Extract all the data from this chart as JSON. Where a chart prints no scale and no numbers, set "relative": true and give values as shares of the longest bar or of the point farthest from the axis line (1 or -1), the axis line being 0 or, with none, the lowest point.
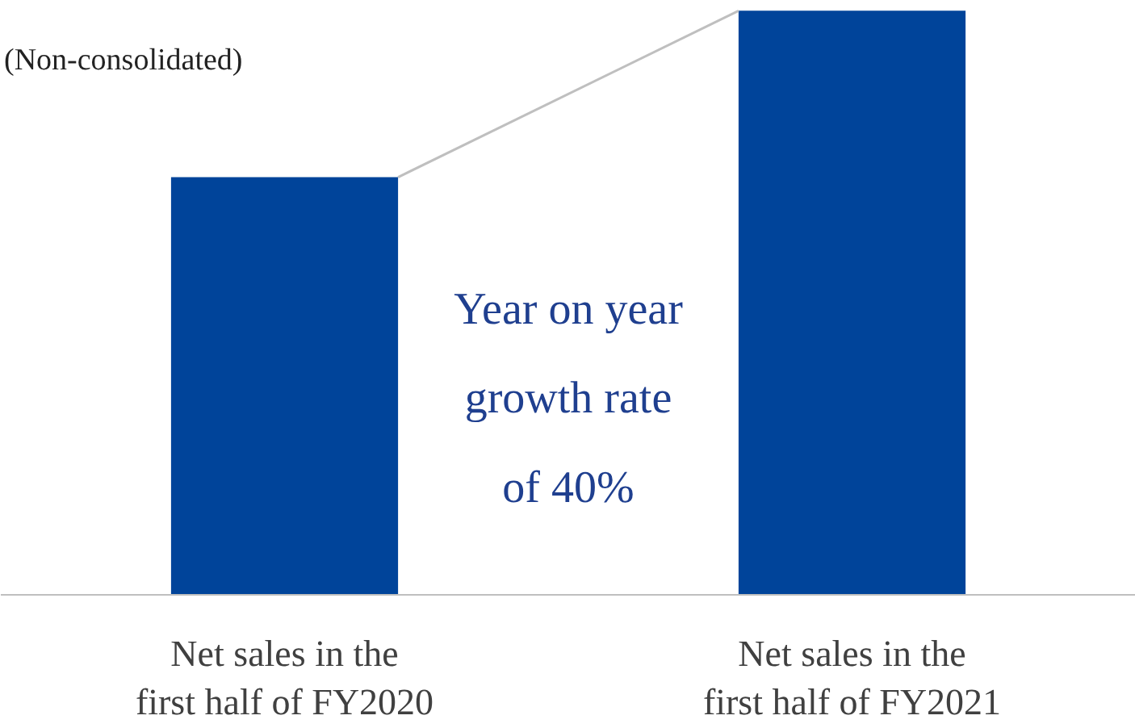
{
  "chart_data": {
    "type": "bar",
    "relative": true,
    "categories": [
      "Net sales in the first half of FY2020",
      "Net sales in the first half of FY2021"
    ],
    "values": [
      0.715,
      1
    ],
    "color": "#00449a",
    "annotations": [
      "(Non-consolidated)",
      "Year on year growth rate of 40%"
    ],
    "grid": false
  }
}
